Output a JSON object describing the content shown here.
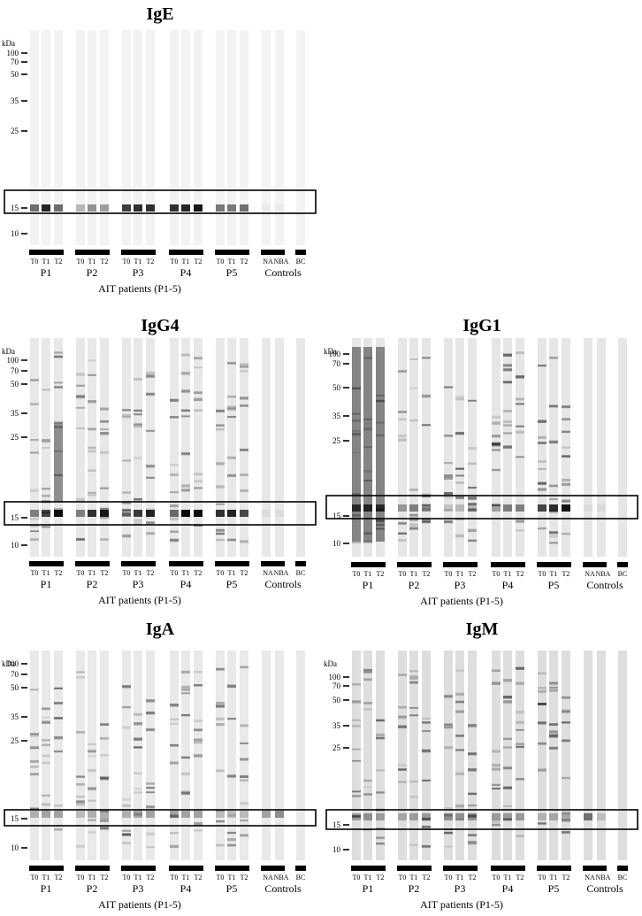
{
  "figure": {
    "kda_label": "kDa",
    "lane_labels": [
      "T0",
      "T1",
      "T2"
    ],
    "patients": [
      "P1",
      "P2",
      "P3",
      "P4",
      "P5"
    ],
    "control_lanes": [
      "NA",
      "NBA"
    ],
    "bc_label": "BC",
    "controls_label": "Controls",
    "axis_label": "AIT patients (P1-5)"
  },
  "panels": [
    {
      "id": "IgE",
      "title": "IgE",
      "markers": [
        {
          "kda": "100"
        },
        {
          "kda": "70"
        },
        {
          "kda": "50"
        },
        {
          "kda": "35"
        },
        {
          "kda": "25"
        },
        {
          "kda": "15"
        },
        {
          "kda": "10"
        }
      ],
      "background": "#f3f3f3",
      "band_darkness": [
        [
          0.55,
          0.85,
          0.55
        ],
        [
          0.25,
          0.4,
          0.35
        ],
        [
          0.75,
          0.8,
          0.8
        ],
        [
          0.8,
          0.85,
          0.9
        ],
        [
          0.5,
          0.5,
          0.55
        ],
        [
          0.03,
          0.03
        ],
        [
          0.0
        ]
      ]
    },
    {
      "id": "IgG4",
      "title": "IgG4",
      "markers": [
        {
          "kda": "100"
        },
        {
          "kda": "70"
        },
        {
          "kda": "50"
        },
        {
          "kda": "35"
        },
        {
          "kda": "25"
        },
        {
          "kda": "15"
        },
        {
          "kda": "10"
        }
      ],
      "background": "#e8e8e8",
      "band_darkness": [
        [
          0.45,
          0.7,
          0.95
        ],
        [
          0.45,
          0.8,
          0.9
        ],
        [
          0.4,
          0.75,
          0.85
        ],
        [
          0.55,
          0.95,
          0.95
        ],
        [
          0.8,
          0.85,
          0.7
        ],
        [
          0.05,
          0.05
        ],
        [
          0.0
        ]
      ]
    },
    {
      "id": "IgG1",
      "title": "IgG1",
      "markers": [
        {
          "kda": "100"
        },
        {
          "kda": "70"
        },
        {
          "kda": "50"
        },
        {
          "kda": "35"
        },
        {
          "kda": "25"
        },
        {
          "kda": "15"
        },
        {
          "kda": "10"
        }
      ],
      "background": "#e6e6e6",
      "band_darkness": [
        [
          0.7,
          0.75,
          0.7
        ],
        [
          0.35,
          0.45,
          0.4
        ],
        [
          0.15,
          0.2,
          0.2
        ],
        [
          0.3,
          0.45,
          0.45
        ],
        [
          0.7,
          0.8,
          0.9
        ],
        [
          0.05,
          0.05
        ],
        [
          0.0
        ]
      ]
    },
    {
      "id": "IgA",
      "title": "IgA",
      "markers": [
        {
          "kda": "100"
        },
        {
          "kda": "70"
        },
        {
          "kda": "50"
        },
        {
          "kda": "35"
        },
        {
          "kda": "25"
        },
        {
          "kda": "15"
        },
        {
          "kda": "10"
        }
      ],
      "background": "#e9e9e9",
      "band_darkness": [
        [
          0.25,
          0.3,
          0.3
        ],
        [
          0.2,
          0.25,
          0.25
        ],
        [
          0.25,
          0.3,
          0.3
        ],
        [
          0.3,
          0.3,
          0.3
        ],
        [
          0.2,
          0.2,
          0.2
        ],
        [
          0.3,
          0.4
        ],
        [
          0.0
        ]
      ]
    },
    {
      "id": "IgM",
      "title": "IgM",
      "markers": [
        {
          "kda": "100"
        },
        {
          "kda": "70"
        },
        {
          "kda": "50"
        },
        {
          "kda": "35"
        },
        {
          "kda": "25"
        },
        {
          "kda": "15"
        },
        {
          "kda": "10"
        }
      ],
      "background": "#dedede",
      "band_darkness": [
        [
          0.3,
          0.35,
          0.3
        ],
        [
          0.25,
          0.3,
          0.3
        ],
        [
          0.35,
          0.35,
          0.35
        ],
        [
          0.3,
          0.3,
          0.3
        ],
        [
          0.2,
          0.25,
          0.25
        ],
        [
          0.5,
          0.15
        ],
        [
          0.0
        ]
      ]
    }
  ]
}
